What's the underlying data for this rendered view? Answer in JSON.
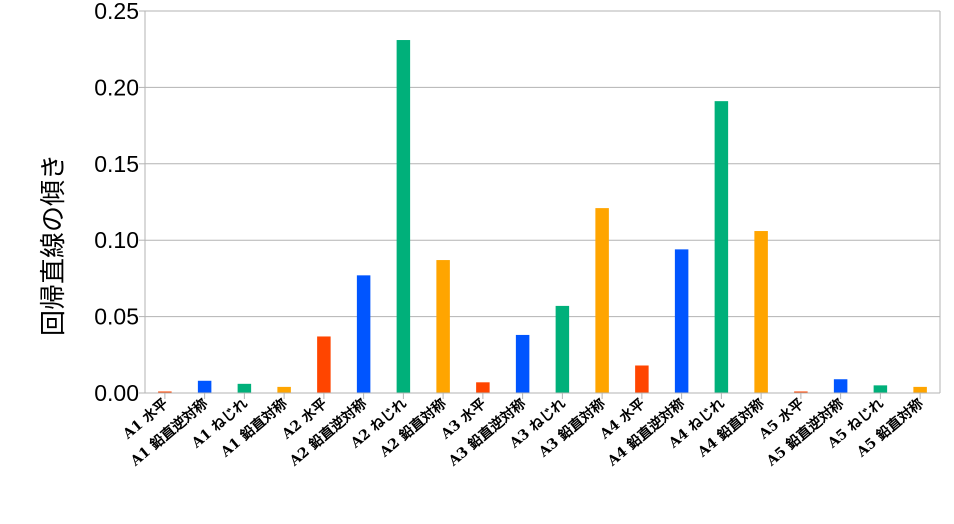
{
  "chart_data": {
    "type": "bar",
    "ylabel": "回帰直線の傾き",
    "ylim": [
      0,
      0.25
    ],
    "yticks": [
      "0.00",
      "0.05",
      "0.10",
      "0.15",
      "0.20",
      "0.25"
    ],
    "grid": true,
    "categories": [
      "A1 水平",
      "A1 鉛直逆対称",
      "A1 ねじれ",
      "A1 鉛直対称",
      "A2 水平",
      "A2 鉛直逆対称",
      "A2 ねじれ",
      "A2 鉛直対称",
      "A3 水平",
      "A3 鉛直逆対称",
      "A3 ねじれ",
      "A3 鉛直対称",
      "A4 水平",
      "A4 鉛直逆対称",
      "A4 ねじれ",
      "A4 鉛直対称",
      "A5 水平",
      "A5 鉛直逆対称",
      "A5 ねじれ",
      "A5 鉛直対称"
    ],
    "values": [
      0.001,
      0.008,
      0.006,
      0.004,
      0.037,
      0.077,
      0.231,
      0.087,
      0.007,
      0.038,
      0.057,
      0.121,
      0.018,
      0.094,
      0.191,
      0.106,
      0.001,
      0.009,
      0.005,
      0.004
    ],
    "bar_colors": {
      "水平": "#ff4500",
      "鉛直逆対称": "#0055ff",
      "ねじれ": "#00b07a",
      "鉛直対称": "#ffa500"
    }
  }
}
